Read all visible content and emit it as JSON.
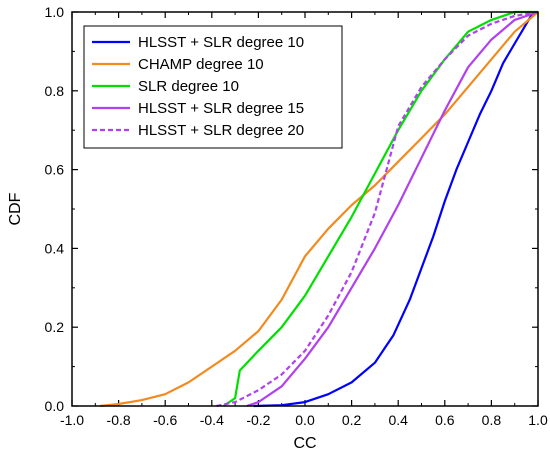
{
  "chart_data": {
    "type": "line",
    "xlabel": "CC",
    "ylabel": "CDF",
    "xlim": [
      -1.0,
      1.0
    ],
    "ylim": [
      0.0,
      1.0
    ],
    "xticks": [
      "-1.0",
      "-0.8",
      "-0.6",
      "-0.4",
      "-0.2",
      "0.0",
      "0.2",
      "0.4",
      "0.6",
      "0.8",
      "1.0"
    ],
    "yticks": [
      "0.0",
      "0.2",
      "0.4",
      "0.6",
      "0.8",
      "1.0"
    ],
    "grid": false,
    "legend_position": "top-left",
    "series": [
      {
        "name": "HLSST + SLR degree 10",
        "color": "#0000FF",
        "dash": "solid",
        "points": [
          [
            -0.22,
            0.0
          ],
          [
            -0.1,
            0.002
          ],
          [
            0.0,
            0.01
          ],
          [
            0.1,
            0.03
          ],
          [
            0.2,
            0.06
          ],
          [
            0.3,
            0.11
          ],
          [
            0.38,
            0.18
          ],
          [
            0.45,
            0.27
          ],
          [
            0.5,
            0.35
          ],
          [
            0.55,
            0.43
          ],
          [
            0.6,
            0.52
          ],
          [
            0.65,
            0.6
          ],
          [
            0.7,
            0.67
          ],
          [
            0.75,
            0.74
          ],
          [
            0.8,
            0.8
          ],
          [
            0.85,
            0.87
          ],
          [
            0.9,
            0.92
          ],
          [
            0.94,
            0.96
          ],
          [
            0.97,
            0.99
          ],
          [
            1.0,
            1.0
          ]
        ]
      },
      {
        "name": "CHAMP degree 10",
        "color": "#F28A1E",
        "dash": "solid",
        "points": [
          [
            -0.88,
            0.0
          ],
          [
            -0.8,
            0.005
          ],
          [
            -0.7,
            0.015
          ],
          [
            -0.6,
            0.03
          ],
          [
            -0.5,
            0.06
          ],
          [
            -0.4,
            0.1
          ],
          [
            -0.3,
            0.14
          ],
          [
            -0.2,
            0.19
          ],
          [
            -0.1,
            0.27
          ],
          [
            0.0,
            0.38
          ],
          [
            0.1,
            0.45
          ],
          [
            0.2,
            0.51
          ],
          [
            0.3,
            0.56
          ],
          [
            0.4,
            0.62
          ],
          [
            0.5,
            0.68
          ],
          [
            0.6,
            0.74
          ],
          [
            0.7,
            0.81
          ],
          [
            0.8,
            0.88
          ],
          [
            0.9,
            0.95
          ],
          [
            1.0,
            1.0
          ]
        ]
      },
      {
        "name": "SLR degree 10",
        "color": "#00E000",
        "dash": "solid",
        "points": [
          [
            -0.35,
            0.0
          ],
          [
            -0.3,
            0.02
          ],
          [
            -0.28,
            0.09
          ],
          [
            -0.2,
            0.14
          ],
          [
            -0.1,
            0.2
          ],
          [
            0.0,
            0.28
          ],
          [
            0.1,
            0.38
          ],
          [
            0.2,
            0.48
          ],
          [
            0.3,
            0.59
          ],
          [
            0.4,
            0.7
          ],
          [
            0.5,
            0.8
          ],
          [
            0.6,
            0.88
          ],
          [
            0.7,
            0.95
          ],
          [
            0.8,
            0.98
          ],
          [
            0.9,
            1.0
          ],
          [
            1.0,
            1.0
          ]
        ]
      },
      {
        "name": "HLSST + SLR degree 15",
        "color": "#B040F0",
        "dash": "solid",
        "points": [
          [
            -0.25,
            0.0
          ],
          [
            -0.2,
            0.01
          ],
          [
            -0.1,
            0.05
          ],
          [
            0.0,
            0.12
          ],
          [
            0.1,
            0.2
          ],
          [
            0.2,
            0.3
          ],
          [
            0.3,
            0.4
          ],
          [
            0.4,
            0.51
          ],
          [
            0.5,
            0.63
          ],
          [
            0.6,
            0.75
          ],
          [
            0.7,
            0.86
          ],
          [
            0.8,
            0.93
          ],
          [
            0.9,
            0.98
          ],
          [
            1.0,
            1.0
          ]
        ]
      },
      {
        "name": "HLSST + SLR degree 20",
        "color": "#B040F0",
        "dash": "dashed",
        "points": [
          [
            -0.38,
            0.0
          ],
          [
            -0.3,
            0.01
          ],
          [
            -0.2,
            0.04
          ],
          [
            -0.1,
            0.08
          ],
          [
            0.0,
            0.14
          ],
          [
            0.1,
            0.23
          ],
          [
            0.2,
            0.34
          ],
          [
            0.3,
            0.49
          ],
          [
            0.35,
            0.6
          ],
          [
            0.4,
            0.71
          ],
          [
            0.5,
            0.81
          ],
          [
            0.6,
            0.88
          ],
          [
            0.7,
            0.94
          ],
          [
            0.8,
            0.97
          ],
          [
            0.9,
            0.99
          ],
          [
            1.0,
            1.0
          ]
        ]
      }
    ]
  }
}
